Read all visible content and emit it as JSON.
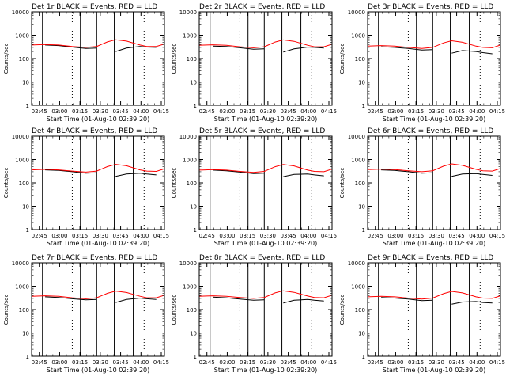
{
  "chart_data": [
    {
      "type": "line",
      "title": "Det 1r BLACK = Events, RED = LLD",
      "xlabel": "Start Time (01-Aug-10 02:39:20)",
      "ylabel": "Counts/sec",
      "yscale": "log",
      "ylim": [
        1,
        10000
      ],
      "xlim_minutes_after_start": [
        0,
        98
      ],
      "xticks": [
        "02:45",
        "03:00",
        "03:15",
        "03:30",
        "03:45",
        "04:00",
        "04:15"
      ],
      "yticks": [
        "1",
        "10",
        "100",
        "1000",
        "10000"
      ],
      "x_minutes_after_start": [
        0,
        10,
        20,
        30,
        40,
        48,
        56,
        62,
        70,
        80,
        85,
        92,
        98
      ],
      "series": [
        {
          "name": "Events",
          "color": "#000000",
          "values": [
            null,
            380,
            360,
            310,
            270,
            280,
            null,
            200,
            280,
            330,
            310,
            300,
            null
          ]
        },
        {
          "name": "LLD",
          "color": "#ff0000",
          "values": [
            380,
            400,
            380,
            330,
            300,
            330,
            520,
            640,
            560,
            380,
            330,
            330,
            420
          ]
        }
      ],
      "solid_vertical_lines": [
        8,
        36,
        48,
        61,
        75
      ],
      "dotted_vertical_lines": [
        30,
        83
      ]
    },
    {
      "type": "line",
      "title": "Det 2r BLACK = Events, RED = LLD",
      "xlabel": "Start Time (01-Aug-10 02:39:20)",
      "ylabel": "Counts/sec",
      "yscale": "log",
      "ylim": [
        1,
        10000
      ],
      "xlim_minutes_after_start": [
        0,
        98
      ],
      "xticks": [
        "02:45",
        "03:00",
        "03:15",
        "03:30",
        "03:45",
        "04:00",
        "04:15"
      ],
      "yticks": [
        "1",
        "10",
        "100",
        "1000",
        "10000"
      ],
      "x_minutes_after_start": [
        0,
        10,
        20,
        30,
        40,
        48,
        56,
        62,
        70,
        80,
        85,
        92,
        98
      ],
      "series": [
        {
          "name": "Events",
          "color": "#000000",
          "values": [
            null,
            340,
            330,
            290,
            250,
            260,
            null,
            190,
            260,
            310,
            300,
            280,
            null
          ]
        },
        {
          "name": "LLD",
          "color": "#ff0000",
          "values": [
            370,
            390,
            370,
            320,
            290,
            320,
            510,
            630,
            550,
            370,
            320,
            320,
            410
          ]
        }
      ],
      "solid_vertical_lines": [
        8,
        36,
        48,
        61,
        75
      ],
      "dotted_vertical_lines": [
        30,
        83
      ]
    },
    {
      "type": "line",
      "title": "Det 3r BLACK = Events, RED = LLD",
      "xlabel": "Start Time (01-Aug-10 02:39:20)",
      "ylabel": "Counts/sec",
      "yscale": "log",
      "ylim": [
        1,
        10000
      ],
      "xlim_minutes_after_start": [
        0,
        98
      ],
      "xticks": [
        "02:45",
        "03:00",
        "03:15",
        "03:30",
        "03:45",
        "04:00",
        "04:15"
      ],
      "yticks": [
        "1",
        "10",
        "100",
        "1000",
        "10000"
      ],
      "x_minutes_after_start": [
        0,
        10,
        20,
        30,
        40,
        48,
        56,
        62,
        70,
        80,
        85,
        92,
        98
      ],
      "series": [
        {
          "name": "Events",
          "color": "#000000",
          "values": [
            null,
            320,
            300,
            270,
            230,
            240,
            null,
            170,
            220,
            200,
            180,
            160,
            null
          ]
        },
        {
          "name": "LLD",
          "color": "#ff0000",
          "values": [
            340,
            360,
            340,
            300,
            270,
            300,
            470,
            580,
            500,
            340,
            300,
            290,
            380
          ]
        }
      ],
      "solid_vertical_lines": [
        8,
        36,
        48,
        61,
        75
      ],
      "dotted_vertical_lines": [
        30,
        83
      ]
    },
    {
      "type": "line",
      "title": "Det 4r BLACK = Events, RED = LLD",
      "xlabel": "Start Time (01-Aug-10 02:39:20)",
      "ylabel": "Counts/sec",
      "yscale": "log",
      "ylim": [
        1,
        10000
      ],
      "xlim_minutes_after_start": [
        0,
        98
      ],
      "xticks": [
        "02:45",
        "03:00",
        "03:15",
        "03:30",
        "03:45",
        "04:00",
        "04:15"
      ],
      "yticks": [
        "1",
        "10",
        "100",
        "1000",
        "10000"
      ],
      "x_minutes_after_start": [
        0,
        10,
        20,
        30,
        40,
        48,
        56,
        62,
        70,
        80,
        85,
        92,
        98
      ],
      "series": [
        {
          "name": "Events",
          "color": "#000000",
          "values": [
            null,
            360,
            340,
            300,
            260,
            270,
            null,
            190,
            240,
            260,
            240,
            220,
            null
          ]
        },
        {
          "name": "LLD",
          "color": "#ff0000",
          "values": [
            360,
            380,
            360,
            320,
            290,
            320,
            500,
            620,
            540,
            360,
            320,
            310,
            400
          ]
        }
      ],
      "solid_vertical_lines": [
        8,
        36,
        48,
        61,
        75
      ],
      "dotted_vertical_lines": [
        30,
        83
      ]
    },
    {
      "type": "line",
      "title": "Det 5r BLACK = Events, RED = LLD",
      "xlabel": "Start Time (01-Aug-10 02:39:20)",
      "ylabel": "Counts/sec",
      "yscale": "log",
      "ylim": [
        1,
        10000
      ],
      "xlim_minutes_after_start": [
        0,
        98
      ],
      "xticks": [
        "02:45",
        "03:00",
        "03:15",
        "03:30",
        "03:45",
        "04:00",
        "04:15"
      ],
      "yticks": [
        "1",
        "10",
        "100",
        "1000",
        "10000"
      ],
      "x_minutes_after_start": [
        0,
        10,
        20,
        30,
        40,
        48,
        56,
        62,
        70,
        80,
        85,
        92,
        98
      ],
      "series": [
        {
          "name": "Events",
          "color": "#000000",
          "values": [
            null,
            350,
            330,
            290,
            250,
            260,
            null,
            185,
            230,
            240,
            220,
            200,
            null
          ]
        },
        {
          "name": "LLD",
          "color": "#ff0000",
          "values": [
            350,
            370,
            350,
            310,
            280,
            310,
            490,
            610,
            530,
            350,
            310,
            300,
            390
          ]
        }
      ],
      "solid_vertical_lines": [
        8,
        36,
        48,
        61,
        75
      ],
      "dotted_vertical_lines": [
        30,
        83
      ]
    },
    {
      "type": "line",
      "title": "Det 6r BLACK = Events, RED = LLD",
      "xlabel": "Start Time (01-Aug-10 02:39:20)",
      "ylabel": "Counts/sec",
      "yscale": "log",
      "ylim": [
        1,
        10000
      ],
      "xlim_minutes_after_start": [
        0,
        98
      ],
      "xticks": [
        "02:45",
        "03:00",
        "03:15",
        "03:30",
        "03:45",
        "04:00",
        "04:15"
      ],
      "yticks": [
        "1",
        "10",
        "100",
        "1000",
        "10000"
      ],
      "x_minutes_after_start": [
        0,
        10,
        20,
        30,
        40,
        48,
        56,
        62,
        70,
        80,
        85,
        92,
        98
      ],
      "series": [
        {
          "name": "Events",
          "color": "#000000",
          "values": [
            null,
            360,
            340,
            300,
            260,
            270,
            null,
            190,
            240,
            250,
            230,
            210,
            null
          ]
        },
        {
          "name": "LLD",
          "color": "#ff0000",
          "values": [
            370,
            390,
            370,
            330,
            300,
            330,
            520,
            650,
            560,
            380,
            330,
            320,
            410
          ]
        }
      ],
      "solid_vertical_lines": [
        8,
        36,
        48,
        61,
        75
      ],
      "dotted_vertical_lines": [
        30,
        83
      ]
    },
    {
      "type": "line",
      "title": "Det 7r BLACK = Events, RED = LLD",
      "xlabel": "Start Time (01-Aug-10 02:39:20)",
      "ylabel": "Counts/sec",
      "yscale": "log",
      "ylim": [
        1,
        10000
      ],
      "xlim_minutes_after_start": [
        0,
        98
      ],
      "xticks": [
        "02:45",
        "03:00",
        "03:15",
        "03:30",
        "03:45",
        "04:00",
        "04:15"
      ],
      "yticks": [
        "1",
        "10",
        "100",
        "1000",
        "10000"
      ],
      "x_minutes_after_start": [
        0,
        10,
        20,
        30,
        40,
        48,
        56,
        62,
        70,
        80,
        85,
        92,
        98
      ],
      "series": [
        {
          "name": "Events",
          "color": "#000000",
          "values": [
            null,
            350,
            330,
            290,
            260,
            270,
            null,
            200,
            270,
            310,
            290,
            270,
            null
          ]
        },
        {
          "name": "LLD",
          "color": "#ff0000",
          "values": [
            370,
            390,
            370,
            320,
            290,
            320,
            500,
            620,
            540,
            370,
            320,
            320,
            410
          ]
        }
      ],
      "solid_vertical_lines": [
        8,
        36,
        48,
        61,
        75
      ],
      "dotted_vertical_lines": [
        30,
        83
      ]
    },
    {
      "type": "line",
      "title": "Det 8r BLACK = Events, RED = LLD",
      "xlabel": "Start Time (01-Aug-10 02:39:20)",
      "ylabel": "Counts/sec",
      "yscale": "log",
      "ylim": [
        1,
        10000
      ],
      "xlim_minutes_after_start": [
        0,
        98
      ],
      "xticks": [
        "02:45",
        "03:00",
        "03:15",
        "03:30",
        "03:45",
        "04:00",
        "04:15"
      ],
      "yticks": [
        "1",
        "10",
        "100",
        "1000",
        "10000"
      ],
      "x_minutes_after_start": [
        0,
        10,
        20,
        30,
        40,
        48,
        56,
        62,
        70,
        80,
        85,
        92,
        98
      ],
      "series": [
        {
          "name": "Events",
          "color": "#000000",
          "values": [
            null,
            340,
            320,
            280,
            250,
            260,
            null,
            190,
            250,
            270,
            250,
            230,
            null
          ]
        },
        {
          "name": "LLD",
          "color": "#ff0000",
          "values": [
            370,
            390,
            370,
            330,
            300,
            330,
            520,
            640,
            550,
            380,
            330,
            320,
            410
          ]
        }
      ],
      "solid_vertical_lines": [
        8,
        36,
        48,
        61,
        75
      ],
      "dotted_vertical_lines": [
        30,
        83
      ]
    },
    {
      "type": "line",
      "title": "Det 9r BLACK = Events, RED = LLD",
      "xlabel": "Start Time (01-Aug-10 02:39:20)",
      "ylabel": "Counts/sec",
      "yscale": "log",
      "ylim": [
        1,
        10000
      ],
      "xlim_minutes_after_start": [
        0,
        98
      ],
      "xticks": [
        "02:45",
        "03:00",
        "03:15",
        "03:30",
        "03:45",
        "04:00",
        "04:15"
      ],
      "yticks": [
        "1",
        "10",
        "100",
        "1000",
        "10000"
      ],
      "x_minutes_after_start": [
        0,
        10,
        20,
        30,
        40,
        48,
        56,
        62,
        70,
        80,
        85,
        92,
        98
      ],
      "series": [
        {
          "name": "Events",
          "color": "#000000",
          "values": [
            null,
            330,
            310,
            280,
            240,
            250,
            null,
            170,
            210,
            220,
            200,
            190,
            null
          ]
        },
        {
          "name": "LLD",
          "color": "#ff0000",
          "values": [
            350,
            370,
            350,
            310,
            280,
            310,
            480,
            600,
            520,
            350,
            310,
            300,
            390
          ]
        }
      ],
      "solid_vertical_lines": [
        8,
        36,
        48,
        61,
        75
      ],
      "dotted_vertical_lines": [
        30,
        83
      ]
    }
  ]
}
